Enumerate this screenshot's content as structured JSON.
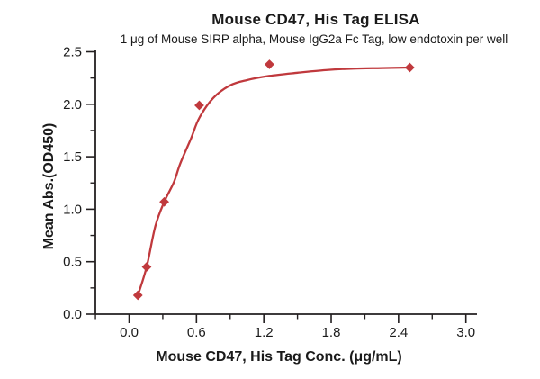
{
  "figure": {
    "title": "Mouse CD47, His Tag ELISA",
    "subtitle": "1 μg of Mouse SIRP alpha, Mouse IgG2a Fc Tag, low endotoxin per well"
  },
  "chart_data": {
    "type": "scatter",
    "title": "Mouse CD47, His Tag ELISA",
    "subtitle": "1 μg of Mouse SIRP alpha, Mouse IgG2a Fc Tag, low endotoxin per well",
    "xlabel": "Mouse CD47, His Tag Conc. (μg/mL)",
    "ylabel": "Mean Abs.(OD450)",
    "xlim": [
      -0.3,
      3.1
    ],
    "ylim": [
      0,
      2.5
    ],
    "x_major_ticks": [
      0.0,
      0.6,
      1.2,
      1.8,
      2.4,
      3.0
    ],
    "x_minor_ticks": [
      -0.3,
      0.3,
      0.9,
      1.5,
      2.1,
      2.7
    ],
    "y_major_ticks": [
      0.0,
      0.5,
      1.0,
      1.5,
      2.0,
      2.5
    ],
    "y_minor_ticks": [
      0.25,
      0.75,
      1.25,
      1.75,
      2.25
    ],
    "tick_decimals": 1,
    "grid": false,
    "legend": "none",
    "axis_color": "#231f20",
    "text_color": "#1a1a1a",
    "accent_color": "#c0393d",
    "series": [
      {
        "name": "Mouse CD47, His Tag",
        "marker": "diamond",
        "color": "#c0393d",
        "points": [
          {
            "x": 0.078,
            "y": 0.18
          },
          {
            "x": 0.156,
            "y": 0.45
          },
          {
            "x": 0.313,
            "y": 1.07
          },
          {
            "x": 0.625,
            "y": 1.99
          },
          {
            "x": 1.25,
            "y": 2.38
          },
          {
            "x": 2.5,
            "y": 2.35
          }
        ]
      }
    ],
    "fit_curve": {
      "type": "4PL-fit",
      "color": "#c0393d",
      "x": [
        0.078,
        0.156,
        0.234,
        0.313,
        0.4,
        0.454,
        0.55,
        0.625,
        0.75,
        0.9,
        1.05,
        1.25,
        1.5,
        1.75,
        2.0,
        2.25,
        2.5
      ],
      "y": [
        0.18,
        0.45,
        0.84,
        1.07,
        1.26,
        1.43,
        1.67,
        1.87,
        2.06,
        2.18,
        2.23,
        2.27,
        2.3,
        2.325,
        2.34,
        2.345,
        2.35
      ]
    }
  }
}
